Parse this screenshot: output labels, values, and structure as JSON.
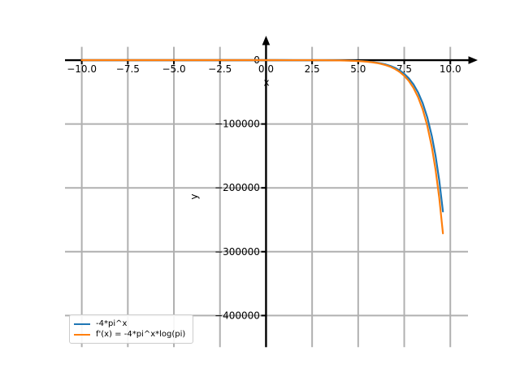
{
  "figure": {
    "background": "#ffffff"
  },
  "chart_data": {
    "type": "line",
    "title": "",
    "xlabel": "x",
    "ylabel": "y",
    "xlim": [
      -10.91,
      10.96
    ],
    "ylim": [
      -449400,
      20900
    ],
    "grid": true,
    "grid_color": "#b0b0b0",
    "axis_color": "#000000",
    "x_ticks": {
      "values": [
        -10,
        -7.5,
        -5,
        -2.5,
        0,
        2.5,
        5,
        7.5,
        10
      ],
      "labels": [
        "−10.0",
        "−7.5",
        "−5.0",
        "−2.5",
        "0.0",
        "2.5",
        "5.0",
        "7.5",
        "10.0"
      ]
    },
    "y_ticks": {
      "values": [
        0,
        -100000,
        -200000,
        -300000,
        -400000
      ],
      "labels": [
        "0",
        "−100000",
        "−200000",
        "−300000",
        "−400000"
      ]
    },
    "legend": {
      "location": "lower left"
    },
    "x": [
      -10,
      -8,
      -6,
      -4,
      -3,
      -2,
      -1,
      0,
      0.5,
      1,
      1.5,
      2,
      2.5,
      3,
      3.5,
      4,
      4.25,
      4.5,
      4.75,
      5,
      5.25,
      5.5,
      5.75,
      6,
      6.25,
      6.5,
      6.75,
      7,
      7.25,
      7.5,
      7.75,
      8,
      8.25,
      8.5,
      8.75,
      9,
      9.2,
      9.4,
      9.6
    ],
    "series": [
      {
        "name": "-4*pi^x",
        "color": "#1f77b4",
        "values": [
          0,
          0,
          0,
          -0.04,
          -0.13,
          -0.41,
          -1.27,
          -4,
          -7.09,
          -12.57,
          -22.27,
          -39.48,
          -69.97,
          -124.03,
          -219.81,
          -389.64,
          -518.8,
          -690.5,
          -919.4,
          -1224.1,
          -1629.7,
          -2169.5,
          -2888.7,
          -3845.6,
          -5119.5,
          -6816.1,
          -9074.5,
          -12078.9,
          -16083,
          -21414,
          -28509,
          -37955,
          -50531,
          -67275,
          -89562,
          -119234,
          -149911,
          -188485,
          -236971
        ]
      },
      {
        "name": "f'(x) = -4*pi^x*log(pi)",
        "color": "#ff7f0e",
        "values": [
          0,
          0,
          0,
          -0.05,
          -0.15,
          -0.46,
          -1.46,
          -4.58,
          -8.12,
          -14.39,
          -25.5,
          -45.19,
          -80.1,
          -141.98,
          -251.63,
          -446.04,
          -593.9,
          -790.4,
          -1052.5,
          -1401.3,
          -1865.6,
          -2483.5,
          -3306.8,
          -4402.2,
          -5860.5,
          -7802.6,
          -10387.9,
          -13827.1,
          -18411,
          -24513,
          -32635,
          -43449,
          -57844,
          -77013,
          -102524,
          -136491,
          -171608,
          -215764,
          -271268
        ]
      }
    ]
  }
}
